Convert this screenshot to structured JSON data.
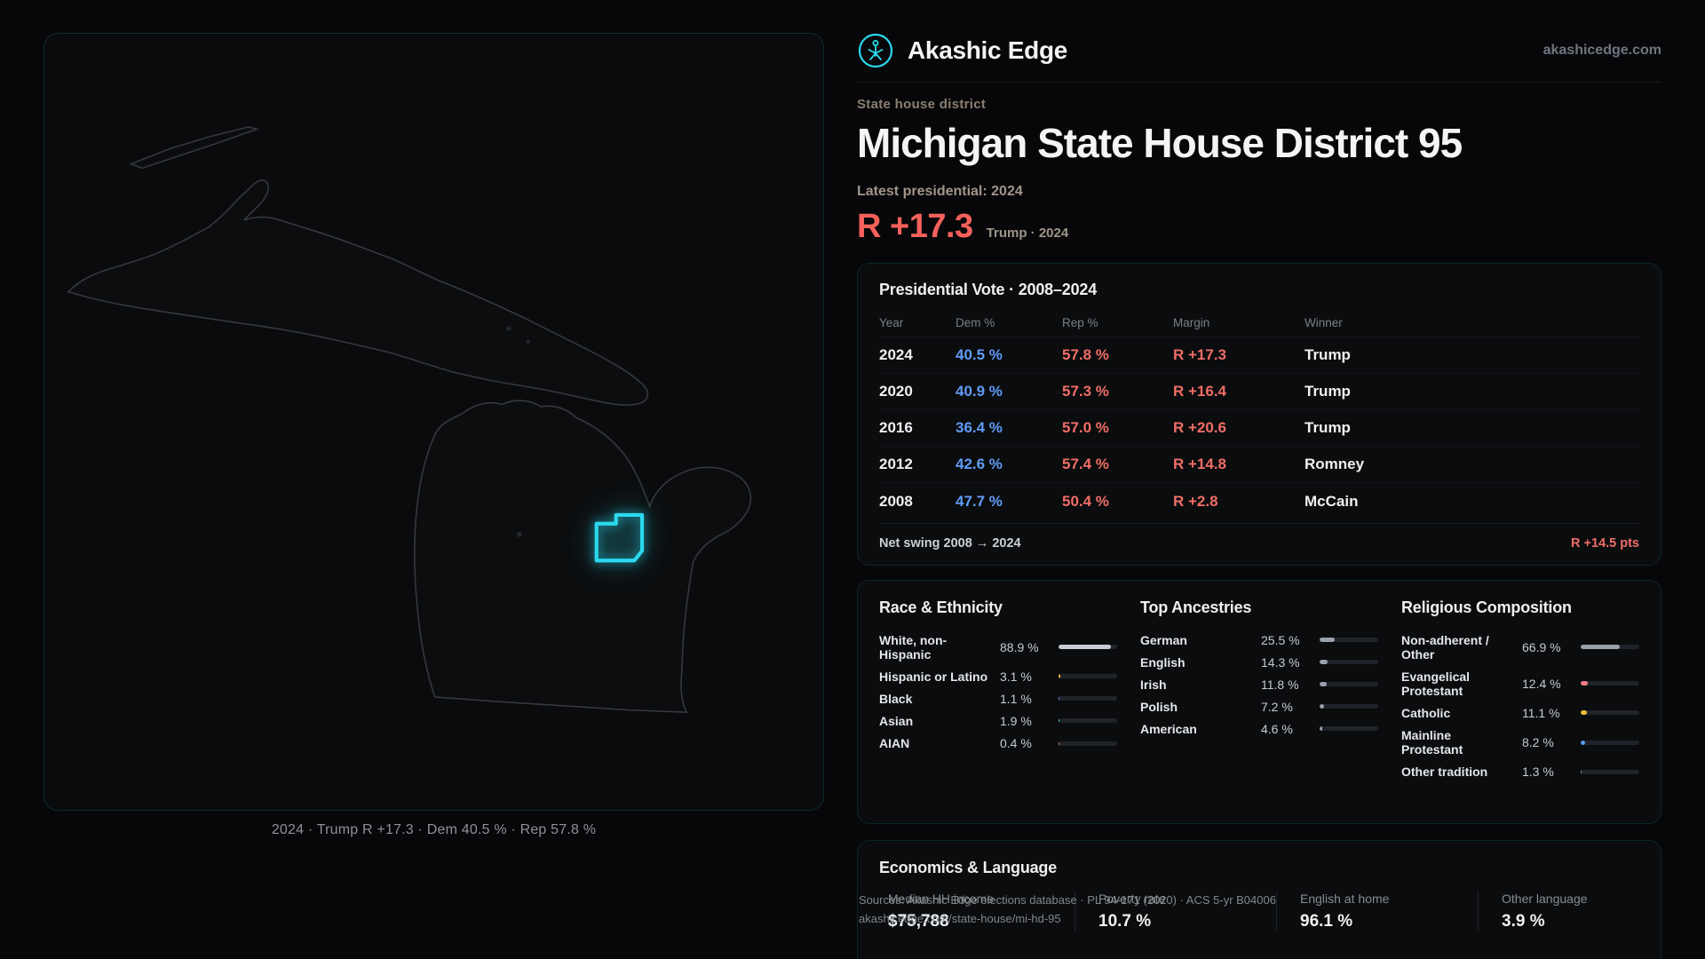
{
  "colors": {
    "accent": "#2bd9ee",
    "rep": "#ef6e66",
    "dem": "#5f9cf6"
  },
  "header": {
    "brand": "Akashic Edge",
    "domain": "akashicedge.com"
  },
  "hero": {
    "eyebrow": "State house district",
    "title": "Michigan State House District 95",
    "latest": "Latest presidential: 2024",
    "margin": "R +17.3",
    "margin_context": "Trump · 2024"
  },
  "map": {
    "caption": "2024 · Trump R +17.3 · Dem 40.5 % · Rep 57.8 %"
  },
  "presidential": {
    "title": "Presidential Vote · 2008–2024",
    "columns": [
      "Year",
      "Dem %",
      "Rep %",
      "Margin",
      "Winner"
    ],
    "rows": [
      {
        "year": "2024",
        "dem": "40.5 %",
        "rep": "57.8 %",
        "margin": "R +17.3",
        "winner": "Trump"
      },
      {
        "year": "2020",
        "dem": "40.9 %",
        "rep": "57.3 %",
        "margin": "R +16.4",
        "winner": "Trump"
      },
      {
        "year": "2016",
        "dem": "36.4 %",
        "rep": "57.0 %",
        "margin": "R +20.6",
        "winner": "Trump"
      },
      {
        "year": "2012",
        "dem": "42.6 %",
        "rep": "57.4 %",
        "margin": "R +14.8",
        "winner": "Romney"
      },
      {
        "year": "2008",
        "dem": "47.7 %",
        "rep": "50.4 %",
        "margin": "R +2.8",
        "winner": "McCain"
      }
    ],
    "net_swing_label": "Net swing 2008 → 2024",
    "net_swing_value": "R +14.5 pts"
  },
  "race": {
    "title": "Race & Ethnicity",
    "rows": [
      {
        "label": "White, non-Hispanic",
        "value": "88.9 %",
        "pct": 88.9,
        "color": "#c9ced6"
      },
      {
        "label": "Hispanic or Latino",
        "value": "3.1 %",
        "pct": 3.1,
        "color": "#f2a93b"
      },
      {
        "label": "Black",
        "value": "1.1 %",
        "pct": 1.1,
        "color": "#8f7ff0"
      },
      {
        "label": "Asian",
        "value": "1.9 %",
        "pct": 1.9,
        "color": "#35d0a5"
      },
      {
        "label": "AIAN",
        "value": "0.4 %",
        "pct": 0.4,
        "color": "#f07a4f"
      }
    ]
  },
  "ancestries": {
    "title": "Top Ancestries",
    "rows": [
      {
        "label": "German",
        "value": "25.5 %",
        "pct": 25.5,
        "color": "#99a1ab"
      },
      {
        "label": "English",
        "value": "14.3 %",
        "pct": 14.3,
        "color": "#99a1ab"
      },
      {
        "label": "Irish",
        "value": "11.8 %",
        "pct": 11.8,
        "color": "#99a1ab"
      },
      {
        "label": "Polish",
        "value": "7.2 %",
        "pct": 7.2,
        "color": "#99a1ab"
      },
      {
        "label": "American",
        "value": "4.6 %",
        "pct": 4.6,
        "color": "#99a1ab"
      }
    ]
  },
  "religion": {
    "title": "Religious Composition",
    "rows": [
      {
        "label": "Non-adherent / Other",
        "value": "66.9 %",
        "pct": 66.9,
        "color": "#99a1ab"
      },
      {
        "label": "Evangelical Protestant",
        "value": "12.4 %",
        "pct": 12.4,
        "color": "#ef7e8a"
      },
      {
        "label": "Catholic",
        "value": "11.1 %",
        "pct": 11.1,
        "color": "#e8c23a"
      },
      {
        "label": "Mainline Protestant",
        "value": "8.2 %",
        "pct": 8.2,
        "color": "#5f9cf6"
      },
      {
        "label": "Other tradition",
        "value": "1.3 %",
        "pct": 1.3,
        "color": "#99a1ab"
      }
    ]
  },
  "economics": {
    "title": "Economics & Language",
    "stats": [
      {
        "label": "Median HH income",
        "value": "$75,788"
      },
      {
        "label": "Poverty rate",
        "value": "10.7 %"
      },
      {
        "label": "English at home",
        "value": "96.1 %"
      },
      {
        "label": "Other language",
        "value": "3.9 %"
      }
    ]
  },
  "footer": {
    "sources": "Sources: Akashic Edge elections database · PL 94-171 (2020) · ACS 5-yr B04006",
    "permalink": "akashicedge.com/state-house/mi-hd-95"
  }
}
